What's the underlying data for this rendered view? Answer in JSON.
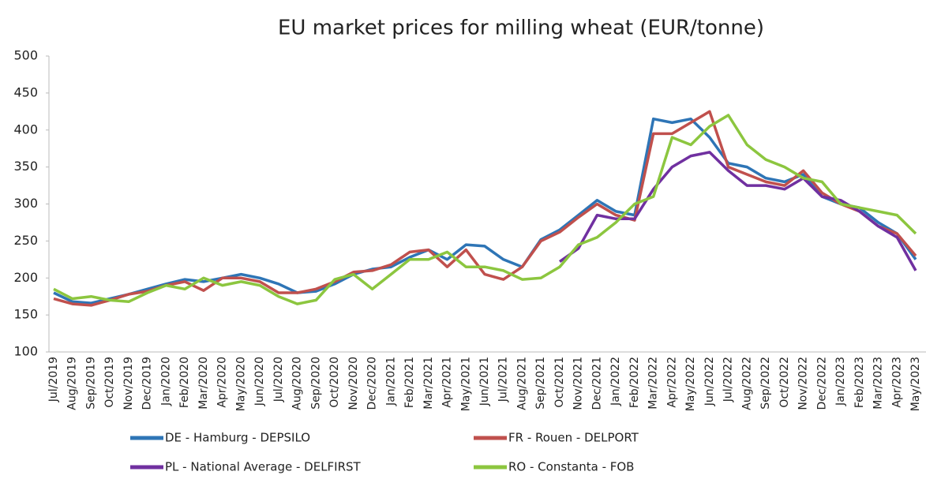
{
  "chart_data": {
    "type": "line",
    "title": "EU market prices for milling wheat (EUR/tonne)",
    "categories": [
      "Jul/2019",
      "Aug/2019",
      "Sep/2019",
      "Oct/2019",
      "Nov/2019",
      "Dec/2019",
      "Jan/2020",
      "Feb/2020",
      "Mar/2020",
      "Apr/2020",
      "May/2020",
      "Jun/2020",
      "Jul/2020",
      "Aug/2020",
      "Sep/2020",
      "Oct/2020",
      "Nov/2020",
      "Dec/2020",
      "Jan/2021",
      "Feb/2021",
      "Mar/2021",
      "Apr/2021",
      "May/2021",
      "Jun/2021",
      "Jul/2021",
      "Aug/2021",
      "Sep/2021",
      "Oct/2021",
      "Nov/2021",
      "Dec/2021",
      "Jan/2022",
      "Feb/2022",
      "Mar/2022",
      "Apr/2022",
      "May/2022",
      "Jun/2022",
      "Jul/2022",
      "Aug/2022",
      "Sep/2022",
      "Oct/2022",
      "Nov/2022",
      "Dec/2022",
      "Jan/2023",
      "Feb/2023",
      "Mar/2023",
      "Apr/2023",
      "May/2023"
    ],
    "series": [
      {
        "name": "DE - Hamburg - DEPSILO",
        "color": "#2e75b6",
        "values": [
          180,
          168,
          166,
          172,
          178,
          185,
          192,
          198,
          195,
          200,
          205,
          200,
          192,
          180,
          182,
          192,
          205,
          212,
          215,
          228,
          238,
          225,
          245,
          243,
          225,
          215,
          252,
          265,
          285,
          305,
          290,
          285,
          415,
          410,
          415,
          390,
          355,
          350,
          335,
          330,
          340,
          310,
          300,
          295,
          275,
          260,
          225
        ]
      },
      {
        "name": "FR - Rouen - DELPORT",
        "color": "#c0504d",
        "values": [
          172,
          165,
          163,
          170,
          178,
          182,
          190,
          195,
          183,
          200,
          200,
          195,
          180,
          180,
          185,
          195,
          208,
          210,
          218,
          235,
          238,
          215,
          238,
          205,
          198,
          215,
          250,
          262,
          282,
          300,
          285,
          278,
          395,
          395,
          410,
          425,
          350,
          340,
          330,
          325,
          345,
          315,
          300,
          290,
          270,
          260,
          230
        ]
      },
      {
        "name": "PL - National Average - DELFIRST",
        "color": "#7030a0",
        "values": [
          null,
          null,
          null,
          null,
          null,
          null,
          null,
          null,
          null,
          null,
          null,
          null,
          null,
          null,
          null,
          null,
          null,
          null,
          null,
          null,
          null,
          null,
          null,
          null,
          null,
          null,
          null,
          222,
          240,
          285,
          280,
          280,
          320,
          350,
          365,
          370,
          345,
          325,
          325,
          320,
          335,
          310,
          305,
          290,
          270,
          255,
          210
        ]
      },
      {
        "name": "RO - Constanta - FOB",
        "color": "#8cc63f",
        "values": [
          185,
          172,
          175,
          170,
          168,
          180,
          190,
          185,
          200,
          190,
          195,
          190,
          175,
          165,
          170,
          198,
          205,
          185,
          205,
          225,
          225,
          235,
          215,
          215,
          210,
          198,
          200,
          215,
          245,
          255,
          275,
          300,
          310,
          390,
          380,
          405,
          420,
          380,
          360,
          350,
          335,
          330,
          300,
          295,
          290,
          285,
          260
        ]
      }
    ],
    "ylim": [
      100,
      500
    ],
    "yticks": [
      100,
      150,
      200,
      250,
      300,
      350,
      400,
      450,
      500
    ],
    "grid": false,
    "legend": "bottom"
  }
}
